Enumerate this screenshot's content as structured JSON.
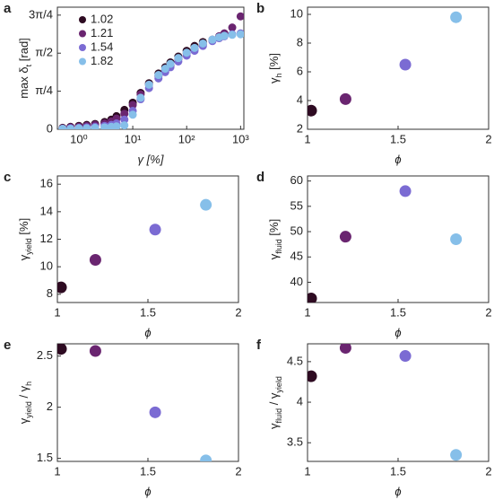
{
  "chart_data": [
    {
      "type": "scatter",
      "panel_label": "a",
      "xscale": "log",
      "xlabel": [
        {
          "t": "γ [%]"
        }
      ],
      "ylabel": [
        {
          "t": "max δ"
        },
        {
          "sub": "t"
        },
        {
          "t": " [rad]"
        }
      ],
      "x": [
        0.5,
        0.7,
        1,
        1.4,
        2,
        3,
        4,
        5,
        7,
        10,
        14,
        20,
        30,
        40,
        50,
        70,
        100,
        140,
        200,
        300,
        400,
        500,
        700,
        1000
      ],
      "series": [
        {
          "name": "1.02",
          "color": "#2e0b22",
          "values": [
            0.03,
            0.05,
            0.07,
            0.09,
            0.11,
            0.15,
            0.2,
            0.27,
            0.4,
            0.55,
            0.75,
            0.95,
            1.15,
            1.28,
            1.38,
            1.5,
            1.62,
            1.72,
            1.8,
            null,
            null,
            null,
            null,
            null
          ]
        },
        {
          "name": "1.21",
          "color": "#6a2570",
          "values": [
            0.02,
            0.04,
            0.05,
            0.07,
            0.09,
            0.12,
            0.16,
            0.22,
            0.32,
            0.5,
            0.72,
            0.92,
            1.1,
            1.22,
            1.32,
            1.45,
            1.57,
            1.66,
            1.75,
            1.85,
            1.92,
            1.98,
            2.1,
            2.33
          ]
        },
        {
          "name": "1.54",
          "color": "#7b6bd3",
          "values": [
            0.01,
            0.02,
            0.03,
            0.04,
            0.05,
            0.07,
            0.09,
            0.12,
            0.2,
            0.38,
            0.62,
            0.85,
            1.05,
            1.18,
            1.28,
            1.4,
            1.52,
            1.62,
            1.72,
            1.82,
            1.88,
            1.92,
            1.96,
            1.98
          ]
        },
        {
          "name": "1.82",
          "color": "#86bfe9",
          "values": [
            0.01,
            0.01,
            0.02,
            0.02,
            0.03,
            0.04,
            0.05,
            0.06,
            0.08,
            0.3,
            0.65,
            0.92,
            1.12,
            1.25,
            1.35,
            1.47,
            1.58,
            1.68,
            1.77,
            1.85,
            1.9,
            1.93,
            1.95,
            1.96
          ]
        }
      ],
      "xlim": [
        0.4,
        1150
      ],
      "ylim": [
        0,
        2.52
      ],
      "xticks": [
        {
          "value": 1,
          "label": "10⁰"
        },
        {
          "value": 10,
          "label": "10¹"
        },
        {
          "value": 100,
          "label": "10²"
        },
        {
          "value": 1000,
          "label": "10³"
        }
      ],
      "yticks": [
        0,
        {
          "value": 0.785398,
          "label": "π/4"
        },
        {
          "value": 1.570796,
          "label": "π/2"
        },
        {
          "value": 2.356194,
          "label": "3π/4"
        }
      ]
    },
    {
      "type": "scatter",
      "panel_label": "b",
      "xlabel": [
        {
          "t": "ϕ"
        }
      ],
      "ylabel": [
        {
          "t": "γ"
        },
        {
          "sub": "h"
        },
        {
          "t": " [%]"
        }
      ],
      "x": [
        1.02,
        1.21,
        1.54,
        1.82
      ],
      "values": [
        3.3,
        4.1,
        6.5,
        9.8
      ],
      "colors": [
        "#2e0b22",
        "#6a2570",
        "#7b6bd3",
        "#86bfe9"
      ],
      "xlim": [
        1,
        2
      ],
      "ylim": [
        2,
        10.5
      ],
      "xticks": [
        1,
        1.5,
        2
      ],
      "yticks": [
        2,
        4,
        6,
        8,
        10
      ]
    },
    {
      "type": "scatter",
      "panel_label": "c",
      "xlabel": [
        {
          "t": "ϕ"
        }
      ],
      "ylabel": [
        {
          "t": "γ"
        },
        {
          "sub": "yield"
        },
        {
          "t": " [%]"
        }
      ],
      "x": [
        1.02,
        1.21,
        1.54,
        1.82
      ],
      "values": [
        8.5,
        10.5,
        12.7,
        14.5
      ],
      "colors": [
        "#2e0b22",
        "#6a2570",
        "#7b6bd3",
        "#86bfe9"
      ],
      "xlim": [
        1,
        2
      ],
      "ylim": [
        7.4,
        16.6
      ],
      "xticks": [
        1,
        1.5,
        2
      ],
      "yticks": [
        8,
        10,
        12,
        14,
        16
      ]
    },
    {
      "type": "scatter",
      "panel_label": "d",
      "xlabel": [
        {
          "t": "ϕ"
        }
      ],
      "ylabel": [
        {
          "t": "γ"
        },
        {
          "sub": "fluid"
        },
        {
          "t": " [%]"
        }
      ],
      "x": [
        1.02,
        1.21,
        1.54,
        1.82
      ],
      "values": [
        36.8,
        49,
        58,
        48.5
      ],
      "colors": [
        "#2e0b22",
        "#6a2570",
        "#7b6bd3",
        "#86bfe9"
      ],
      "xlim": [
        1,
        2
      ],
      "ylim": [
        36,
        61
      ],
      "xticks": [
        1,
        1.5,
        2
      ],
      "yticks": [
        40,
        45,
        50,
        55,
        60
      ]
    },
    {
      "type": "scatter",
      "panel_label": "e",
      "xlabel": [
        {
          "t": "ϕ"
        }
      ],
      "ylabel": [
        {
          "t": "γ"
        },
        {
          "sub": "yield"
        },
        {
          "t": " / γ"
        },
        {
          "sub": "h"
        }
      ],
      "x": [
        1.02,
        1.21,
        1.54,
        1.82
      ],
      "values": [
        2.57,
        2.55,
        1.95,
        1.48
      ],
      "colors": [
        "#2e0b22",
        "#6a2570",
        "#7b6bd3",
        "#86bfe9"
      ],
      "xlim": [
        1,
        2
      ],
      "ylim": [
        1.47,
        2.62
      ],
      "xticks": [
        1,
        1.5,
        2
      ],
      "yticks": [
        1.5,
        2,
        2.5
      ]
    },
    {
      "type": "scatter",
      "panel_label": "f",
      "xlabel": [
        {
          "t": "ϕ"
        }
      ],
      "ylabel": [
        {
          "t": "γ"
        },
        {
          "sub": "fluid"
        },
        {
          "t": " / γ"
        },
        {
          "sub": "yield"
        }
      ],
      "x": [
        1.02,
        1.21,
        1.54,
        1.82
      ],
      "values": [
        4.32,
        4.67,
        4.57,
        3.35
      ],
      "colors": [
        "#2e0b22",
        "#6a2570",
        "#7b6bd3",
        "#86bfe9"
      ],
      "xlim": [
        1,
        2
      ],
      "ylim": [
        3.27,
        4.72
      ],
      "xticks": [
        1,
        1.5,
        2
      ],
      "yticks": [
        3.5,
        4,
        4.5
      ]
    }
  ]
}
